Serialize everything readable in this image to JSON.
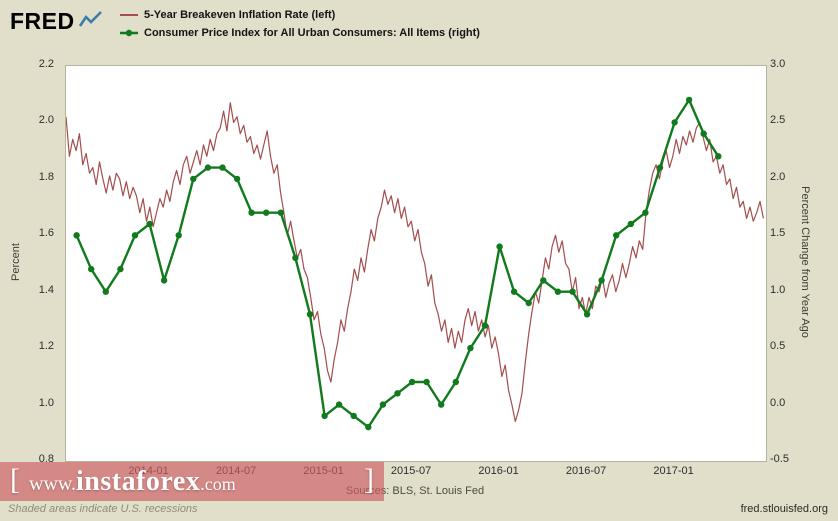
{
  "header": {
    "logo_text": "FRED",
    "legend": [
      {
        "label": "5-Year Breakeven Inflation Rate (left)"
      },
      {
        "label": "Consumer Price Index for All Urban Consumers: All Items (right)"
      }
    ]
  },
  "chart_data": {
    "type": "line",
    "title": "",
    "x_axis": {
      "domain": [
        -5.73,
        42.27
      ],
      "ticks": [
        {
          "m": 0,
          "label": "2014-01"
        },
        {
          "m": 6,
          "label": "2014-07"
        },
        {
          "m": 12,
          "label": "2015-01"
        },
        {
          "m": 18,
          "label": "2015-07"
        },
        {
          "m": 24,
          "label": "2016-01"
        },
        {
          "m": 30,
          "label": "2016-07"
        },
        {
          "m": 36,
          "label": "2017-01"
        }
      ]
    },
    "left_axis": {
      "label": "Percent",
      "range": [
        0.8,
        2.2
      ],
      "ticks": [
        0.8,
        1.0,
        1.2,
        1.4,
        1.6,
        1.8,
        2.0,
        2.2
      ]
    },
    "right_axis": {
      "label": "Percent Change from Year Ago",
      "range": [
        -0.5,
        3.0
      ],
      "ticks": [
        -0.5,
        0.0,
        0.5,
        1.0,
        1.5,
        2.0,
        2.5,
        3.0
      ]
    },
    "series": [
      {
        "id": "breakeven",
        "name": "5-Year Breakeven Inflation Rate",
        "axis": "left",
        "color": "#a34d4d",
        "stroke_width": 1.2,
        "markers": false,
        "start_label": "2013-07",
        "x_start": -5.73,
        "x_step": 0.2299,
        "values": [
          2.02,
          1.88,
          1.94,
          1.9,
          1.96,
          1.85,
          1.89,
          1.82,
          1.84,
          1.78,
          1.86,
          1.8,
          1.75,
          1.81,
          1.76,
          1.82,
          1.8,
          1.74,
          1.79,
          1.73,
          1.77,
          1.74,
          1.68,
          1.73,
          1.65,
          1.7,
          1.63,
          1.68,
          1.73,
          1.7,
          1.76,
          1.72,
          1.79,
          1.83,
          1.78,
          1.85,
          1.88,
          1.82,
          1.86,
          1.9,
          1.85,
          1.92,
          1.88,
          1.94,
          1.9,
          1.96,
          1.98,
          2.04,
          1.97,
          2.07,
          2.0,
          2.02,
          1.96,
          1.99,
          1.93,
          1.95,
          1.89,
          1.92,
          1.87,
          1.92,
          1.97,
          1.88,
          1.82,
          1.85,
          1.75,
          1.68,
          1.6,
          1.65,
          1.58,
          1.52,
          1.55,
          1.48,
          1.45,
          1.38,
          1.3,
          1.33,
          1.25,
          1.2,
          1.12,
          1.08,
          1.16,
          1.22,
          1.3,
          1.26,
          1.34,
          1.4,
          1.48,
          1.44,
          1.52,
          1.47,
          1.55,
          1.62,
          1.58,
          1.66,
          1.7,
          1.76,
          1.71,
          1.74,
          1.68,
          1.73,
          1.66,
          1.7,
          1.63,
          1.65,
          1.58,
          1.62,
          1.54,
          1.5,
          1.42,
          1.46,
          1.36,
          1.32,
          1.26,
          1.3,
          1.22,
          1.27,
          1.2,
          1.26,
          1.22,
          1.3,
          1.34,
          1.28,
          1.33,
          1.26,
          1.3,
          1.24,
          1.28,
          1.2,
          1.24,
          1.18,
          1.1,
          1.14,
          1.05,
          1.0,
          0.94,
          0.98,
          1.04,
          1.15,
          1.25,
          1.33,
          1.4,
          1.36,
          1.44,
          1.52,
          1.48,
          1.56,
          1.6,
          1.54,
          1.58,
          1.5,
          1.48,
          1.4,
          1.45,
          1.34,
          1.38,
          1.32,
          1.38,
          1.34,
          1.42,
          1.4,
          1.45,
          1.38,
          1.43,
          1.46,
          1.4,
          1.44,
          1.5,
          1.45,
          1.5,
          1.56,
          1.52,
          1.58,
          1.55,
          1.68,
          1.76,
          1.82,
          1.85,
          1.8,
          1.86,
          1.9,
          1.84,
          1.88,
          1.94,
          1.89,
          1.95,
          1.92,
          1.97,
          1.93,
          1.98,
          2.0,
          1.95,
          1.9,
          1.94,
          1.86,
          1.88,
          1.82,
          1.85,
          1.78,
          1.8,
          1.73,
          1.77,
          1.7,
          1.72,
          1.66,
          1.7,
          1.65,
          1.68,
          1.72,
          1.66
        ]
      },
      {
        "id": "cpi",
        "name": "Consumer Price Index for All Urban Consumers: All Items",
        "axis": "right",
        "color": "#117a1d",
        "stroke_width": 2.4,
        "markers": true,
        "start_label": "2013-08",
        "x_start": -5,
        "x_step": 1,
        "values": [
          1.5,
          1.2,
          1.0,
          1.2,
          1.5,
          1.6,
          1.1,
          1.5,
          2.0,
          2.1,
          2.1,
          2.0,
          1.7,
          1.7,
          1.7,
          1.3,
          0.8,
          -0.1,
          0.0,
          -0.1,
          -0.2,
          0.0,
          0.1,
          0.2,
          0.2,
          0.0,
          0.2,
          0.5,
          0.7,
          1.4,
          1.0,
          0.9,
          1.1,
          1.0,
          1.0,
          0.8,
          1.1,
          1.5,
          1.6,
          1.7,
          2.1,
          2.5,
          2.7,
          2.4,
          2.2
        ]
      }
    ]
  },
  "footer": {
    "sources": "Sources: BLS, St. Louis Fed",
    "recession_note": "Shaded areas indicate U.S. recessions",
    "site": "fred.stlouisfed.org"
  },
  "watermark": {
    "open_bracket": "[",
    "prefix": "www.",
    "name": "instaforex",
    "suffix": ".com",
    "close_bracket": "]"
  }
}
